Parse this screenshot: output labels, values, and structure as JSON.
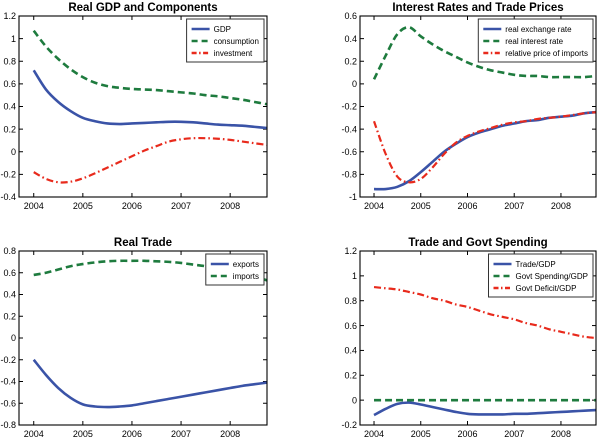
{
  "figure": {
    "background": "#ffffff",
    "axis_color": "#000000",
    "legend_border_color": "#333333",
    "palette": {
      "blue": "#3A53A7",
      "green": "#1E7B3E",
      "red": "#E82A1C"
    }
  },
  "chart_data": [
    {
      "type": "line",
      "title": "Real GDP and Components",
      "xlabel": "",
      "ylabel": "",
      "grid": false,
      "legend_position": "top-right",
      "xlim": [
        2003.7,
        2008.75
      ],
      "ylim": [
        -0.4,
        1.2
      ],
      "xticks": [
        2004,
        2005,
        2006,
        2007,
        2008
      ],
      "xtick_labels": [
        "2004",
        "2005",
        "2006",
        "2007",
        "2008"
      ],
      "yticks": [
        -0.4,
        -0.2,
        0,
        0.2,
        0.4,
        0.6,
        0.8,
        1,
        1.2
      ],
      "ytick_labels": [
        "-0.4",
        "-0.2",
        "0",
        "0.2",
        "0.4",
        "0.6",
        "0.8",
        "1",
        "1.2"
      ],
      "x": [
        2004,
        2004.25,
        2004.5,
        2004.75,
        2005,
        2005.25,
        2005.5,
        2005.75,
        2006,
        2006.25,
        2006.5,
        2006.75,
        2007,
        2007.25,
        2007.5,
        2007.75,
        2008,
        2008.25,
        2008.5,
        2008.75
      ],
      "series": [
        {
          "name": "GDP",
          "color": "blue",
          "style": "solid",
          "values": [
            0.72,
            0.55,
            0.44,
            0.36,
            0.3,
            0.27,
            0.25,
            0.245,
            0.25,
            0.255,
            0.26,
            0.265,
            0.265,
            0.26,
            0.25,
            0.24,
            0.235,
            0.23,
            0.22,
            0.21
          ]
        },
        {
          "name": "consumption",
          "color": "green",
          "style": "dashed",
          "values": [
            1.07,
            0.93,
            0.82,
            0.73,
            0.66,
            0.61,
            0.58,
            0.565,
            0.555,
            0.55,
            0.545,
            0.535,
            0.525,
            0.515,
            0.5,
            0.49,
            0.475,
            0.46,
            0.44,
            0.42
          ]
        },
        {
          "name": "investment",
          "color": "red",
          "style": "dashdot",
          "values": [
            -0.18,
            -0.24,
            -0.27,
            -0.265,
            -0.235,
            -0.19,
            -0.14,
            -0.09,
            -0.04,
            0.01,
            0.05,
            0.09,
            0.11,
            0.12,
            0.12,
            0.115,
            0.105,
            0.09,
            0.075,
            0.06
          ]
        }
      ]
    },
    {
      "type": "line",
      "title": "Interest Rates and Trade Prices",
      "xlabel": "",
      "ylabel": "",
      "grid": false,
      "legend_position": "top-right",
      "xlim": [
        2003.7,
        2008.75
      ],
      "ylim": [
        -1,
        0.6
      ],
      "xticks": [
        2004,
        2005,
        2006,
        2007,
        2008
      ],
      "xtick_labels": [
        "2004",
        "2005",
        "2006",
        "2007",
        "2008"
      ],
      "yticks": [
        -1,
        -0.8,
        -0.6,
        -0.4,
        -0.2,
        0,
        0.2,
        0.4,
        0.6
      ],
      "ytick_labels": [
        "-1",
        "-0.8",
        "-0.6",
        "-0.4",
        "-0.2",
        "0",
        "0.2",
        "0.4",
        "0.6"
      ],
      "x": [
        2004,
        2004.25,
        2004.5,
        2004.75,
        2005,
        2005.25,
        2005.5,
        2005.75,
        2006,
        2006.25,
        2006.5,
        2006.75,
        2007,
        2007.25,
        2007.5,
        2007.75,
        2008,
        2008.25,
        2008.5,
        2008.75
      ],
      "series": [
        {
          "name": "real exchange rate",
          "color": "blue",
          "style": "solid",
          "values": [
            -0.93,
            -0.93,
            -0.91,
            -0.86,
            -0.78,
            -0.69,
            -0.6,
            -0.53,
            -0.47,
            -0.43,
            -0.4,
            -0.37,
            -0.35,
            -0.33,
            -0.32,
            -0.3,
            -0.29,
            -0.28,
            -0.26,
            -0.25
          ]
        },
        {
          "name": "real interest rate",
          "color": "green",
          "style": "dashed",
          "values": [
            0.04,
            0.25,
            0.44,
            0.5,
            0.42,
            0.35,
            0.29,
            0.24,
            0.19,
            0.15,
            0.12,
            0.1,
            0.08,
            0.07,
            0.07,
            0.06,
            0.06,
            0.06,
            0.06,
            0.07
          ]
        },
        {
          "name": "relative price of imports",
          "color": "red",
          "style": "dashdot",
          "values": [
            -0.33,
            -0.62,
            -0.82,
            -0.87,
            -0.84,
            -0.74,
            -0.62,
            -0.52,
            -0.46,
            -0.42,
            -0.39,
            -0.36,
            -0.34,
            -0.33,
            -0.31,
            -0.3,
            -0.29,
            -0.275,
            -0.26,
            -0.25
          ]
        }
      ]
    },
    {
      "type": "line",
      "title": "Real Trade",
      "xlabel": "",
      "ylabel": "",
      "grid": false,
      "legend_position": "top-right",
      "xlim": [
        2003.7,
        2008.75
      ],
      "ylim": [
        -0.8,
        0.8
      ],
      "xticks": [
        2004,
        2005,
        2006,
        2007,
        2008
      ],
      "xtick_labels": [
        "2004",
        "2005",
        "2006",
        "2007",
        "2008"
      ],
      "yticks": [
        -0.8,
        -0.6,
        -0.4,
        -0.2,
        0,
        0.2,
        0.4,
        0.6,
        0.8
      ],
      "ytick_labels": [
        "-0.8",
        "-0.6",
        "-0.4",
        "-0.2",
        "0",
        "0.2",
        "0.4",
        "0.6",
        "0.8"
      ],
      "x": [
        2004,
        2004.25,
        2004.5,
        2004.75,
        2005,
        2005.25,
        2005.5,
        2005.75,
        2006,
        2006.25,
        2006.5,
        2006.75,
        2007,
        2007.25,
        2007.5,
        2007.75,
        2008,
        2008.25,
        2008.5,
        2008.75
      ],
      "series": [
        {
          "name": "exports",
          "color": "blue",
          "style": "solid",
          "values": [
            -0.2,
            -0.34,
            -0.46,
            -0.55,
            -0.61,
            -0.63,
            -0.635,
            -0.63,
            -0.62,
            -0.6,
            -0.58,
            -0.56,
            -0.54,
            -0.52,
            -0.5,
            -0.48,
            -0.46,
            -0.44,
            -0.425,
            -0.41
          ]
        },
        {
          "name": "imports",
          "color": "green",
          "style": "dashed",
          "values": [
            0.58,
            0.6,
            0.63,
            0.66,
            0.68,
            0.695,
            0.705,
            0.71,
            0.71,
            0.71,
            0.705,
            0.7,
            0.69,
            0.675,
            0.66,
            0.64,
            0.62,
            0.595,
            0.565,
            0.53
          ]
        }
      ]
    },
    {
      "type": "line",
      "title": "Trade and Govt Spending",
      "xlabel": "",
      "ylabel": "",
      "grid": false,
      "legend_position": "top-right",
      "xlim": [
        2003.7,
        2008.75
      ],
      "ylim": [
        -0.2,
        1.2
      ],
      "xticks": [
        2004,
        2005,
        2006,
        2007,
        2008
      ],
      "xtick_labels": [
        "2004",
        "2005",
        "2006",
        "2007",
        "2008"
      ],
      "yticks": [
        -0.2,
        0,
        0.2,
        0.4,
        0.6,
        0.8,
        1,
        1.2
      ],
      "ytick_labels": [
        "-0.2",
        "0",
        "0.2",
        "0.4",
        "0.6",
        "0.8",
        "1",
        "1.2"
      ],
      "x": [
        2004,
        2004.25,
        2004.5,
        2004.75,
        2005,
        2005.25,
        2005.5,
        2005.75,
        2006,
        2006.25,
        2006.5,
        2006.75,
        2007,
        2007.25,
        2007.5,
        2007.75,
        2008,
        2008.25,
        2008.5,
        2008.75
      ],
      "series": [
        {
          "name": "Trade/GDP",
          "color": "blue",
          "style": "solid",
          "values": [
            -0.12,
            -0.07,
            -0.03,
            -0.02,
            -0.035,
            -0.055,
            -0.075,
            -0.095,
            -0.11,
            -0.115,
            -0.115,
            -0.115,
            -0.11,
            -0.11,
            -0.105,
            -0.1,
            -0.095,
            -0.09,
            -0.085,
            -0.08
          ]
        },
        {
          "name": "Govt Spending/GDP",
          "color": "green",
          "style": "dashed",
          "values": [
            0,
            0,
            0,
            0,
            0,
            0,
            0,
            0,
            0,
            0,
            0,
            0,
            0,
            0,
            0,
            0,
            0,
            0,
            0,
            0
          ]
        },
        {
          "name": "Govt Deficit/GDP",
          "color": "red",
          "style": "dashdot",
          "values": [
            0.91,
            0.9,
            0.89,
            0.87,
            0.85,
            0.82,
            0.8,
            0.77,
            0.75,
            0.72,
            0.69,
            0.67,
            0.65,
            0.62,
            0.6,
            0.57,
            0.55,
            0.53,
            0.51,
            0.5
          ]
        }
      ]
    }
  ]
}
